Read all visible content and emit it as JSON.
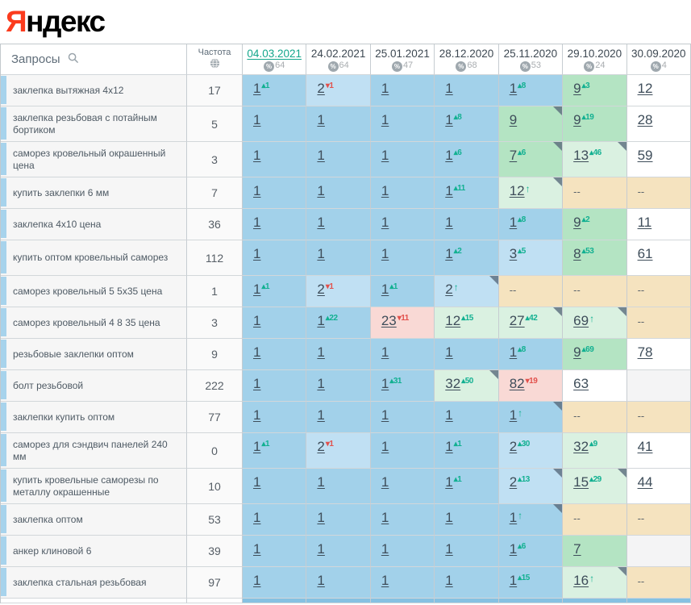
{
  "logo": {
    "first_letter": "Я",
    "rest": "ндекс"
  },
  "colors": {
    "logo_red": "#fb3b1d",
    "active_date": "#12a68b",
    "delta_up": "#12b091",
    "delta_down": "#e2514c",
    "cell_top1": "#a2d1ea",
    "cell_top3": "#c0e0f3",
    "cell_top10": "#b4e4c3",
    "cell_improved": "#daf1e1",
    "cell_declined": "#f9d9d5",
    "cell_not_found": "#f5e3bf"
  },
  "icons": {
    "search": "search-icon",
    "globe": "globe-icon",
    "percent": "percent-icon"
  },
  "table": {
    "queries_header": "Запросы",
    "frequency_header": "Частота",
    "columns": [
      {
        "date": "04.03.2021",
        "coverage": "64",
        "active": true
      },
      {
        "date": "24.02.2021",
        "coverage": "64",
        "active": false
      },
      {
        "date": "25.01.2021",
        "coverage": "47",
        "active": false
      },
      {
        "date": "28.12.2020",
        "coverage": "68",
        "active": false
      },
      {
        "date": "25.11.2020",
        "coverage": "53",
        "active": false
      },
      {
        "date": "29.10.2020",
        "coverage": "24",
        "active": false
      },
      {
        "date": "30.09.2020",
        "coverage": "4",
        "active": false
      }
    ],
    "rows": [
      {
        "keyword": "заклепка вытяжная 4х12",
        "frequency": "17",
        "cells": [
          {
            "p": "1",
            "d": "1",
            "dir": "up",
            "bg": "pos1"
          },
          {
            "p": "2",
            "d": "1",
            "dir": "down",
            "bg": "pos23"
          },
          {
            "p": "1",
            "bg": "pos1"
          },
          {
            "p": "1",
            "bg": "pos1"
          },
          {
            "p": "1",
            "d": "8",
            "dir": "up",
            "bg": "pos1"
          },
          {
            "p": "9",
            "d": "3",
            "dir": "up",
            "bg": "top10"
          },
          {
            "p": "12",
            "bg": "plain"
          }
        ]
      },
      {
        "keyword": "заклепка резьбовая с потайным бортиком",
        "frequency": "5",
        "cells": [
          {
            "p": "1",
            "bg": "pos1"
          },
          {
            "p": "1",
            "bg": "pos1"
          },
          {
            "p": "1",
            "bg": "pos1"
          },
          {
            "p": "1",
            "d": "8",
            "dir": "up",
            "bg": "pos1"
          },
          {
            "p": "9",
            "bg": "top10",
            "corner": true
          },
          {
            "p": "9",
            "d": "19",
            "dir": "up",
            "bg": "top10"
          },
          {
            "p": "28",
            "bg": "plain"
          }
        ]
      },
      {
        "keyword": "саморез кровельный окрашенный цена",
        "frequency": "3",
        "cells": [
          {
            "p": "1",
            "bg": "pos1"
          },
          {
            "p": "1",
            "bg": "pos1"
          },
          {
            "p": "1",
            "bg": "pos1"
          },
          {
            "p": "1",
            "d": "6",
            "dir": "up",
            "bg": "pos1"
          },
          {
            "p": "7",
            "d": "6",
            "dir": "up",
            "bg": "top10",
            "corner": true
          },
          {
            "p": "13",
            "d": "46",
            "dir": "up",
            "bg": "improved",
            "corner": true
          },
          {
            "p": "59",
            "bg": "plain"
          }
        ]
      },
      {
        "keyword": "купить заклепки 6 мм",
        "frequency": "7",
        "cells": [
          {
            "p": "1",
            "bg": "pos1"
          },
          {
            "p": "1",
            "bg": "pos1"
          },
          {
            "p": "1",
            "bg": "pos1"
          },
          {
            "p": "1",
            "d": "11",
            "dir": "up",
            "bg": "pos1"
          },
          {
            "p": "12",
            "dir": "new",
            "bg": "improved",
            "corner": true
          },
          {
            "p": "--",
            "bg": "absent"
          },
          {
            "p": "--",
            "bg": "absent"
          }
        ]
      },
      {
        "keyword": "заклепка 4х10 цена",
        "frequency": "36",
        "cells": [
          {
            "p": "1",
            "bg": "pos1"
          },
          {
            "p": "1",
            "bg": "pos1"
          },
          {
            "p": "1",
            "bg": "pos1"
          },
          {
            "p": "1",
            "bg": "pos1"
          },
          {
            "p": "1",
            "d": "8",
            "dir": "up",
            "bg": "pos1"
          },
          {
            "p": "9",
            "d": "2",
            "dir": "up",
            "bg": "top10"
          },
          {
            "p": "11",
            "bg": "plain"
          }
        ]
      },
      {
        "keyword": "купить оптом кровельный саморез",
        "frequency": "112",
        "cells": [
          {
            "p": "1",
            "bg": "pos1"
          },
          {
            "p": "1",
            "bg": "pos1"
          },
          {
            "p": "1",
            "bg": "pos1"
          },
          {
            "p": "1",
            "d": "2",
            "dir": "up",
            "bg": "pos1"
          },
          {
            "p": "3",
            "d": "5",
            "dir": "up",
            "bg": "pos23"
          },
          {
            "p": "8",
            "d": "53",
            "dir": "up",
            "bg": "top10"
          },
          {
            "p": "61",
            "bg": "plain"
          }
        ]
      },
      {
        "keyword": "саморез кровельный 5 5х35 цена",
        "frequency": "1",
        "cells": [
          {
            "p": "1",
            "d": "1",
            "dir": "up",
            "bg": "pos1"
          },
          {
            "p": "2",
            "d": "1",
            "dir": "down",
            "bg": "pos23"
          },
          {
            "p": "1",
            "d": "1",
            "dir": "up",
            "bg": "pos1"
          },
          {
            "p": "2",
            "dir": "new",
            "bg": "pos23",
            "corner": true
          },
          {
            "p": "--",
            "bg": "absent"
          },
          {
            "p": "--",
            "bg": "absent"
          },
          {
            "p": "--",
            "bg": "absent"
          }
        ]
      },
      {
        "keyword": "саморез кровельный 4 8 35 цена",
        "frequency": "3",
        "cells": [
          {
            "p": "1",
            "bg": "pos1"
          },
          {
            "p": "1",
            "d": "22",
            "dir": "up",
            "bg": "pos1"
          },
          {
            "p": "23",
            "d": "11",
            "dir": "down",
            "bg": "declined"
          },
          {
            "p": "12",
            "d": "15",
            "dir": "up",
            "bg": "improved"
          },
          {
            "p": "27",
            "d": "42",
            "dir": "up",
            "bg": "improved",
            "corner": true
          },
          {
            "p": "69",
            "dir": "new",
            "bg": "improved",
            "corner": true
          },
          {
            "p": "--",
            "bg": "absent"
          }
        ]
      },
      {
        "keyword": "резьбовые заклепки оптом",
        "frequency": "9",
        "cells": [
          {
            "p": "1",
            "bg": "pos1"
          },
          {
            "p": "1",
            "bg": "pos1"
          },
          {
            "p": "1",
            "bg": "pos1"
          },
          {
            "p": "1",
            "bg": "pos1"
          },
          {
            "p": "1",
            "d": "8",
            "dir": "up",
            "bg": "pos1"
          },
          {
            "p": "9",
            "d": "69",
            "dir": "up",
            "bg": "top10"
          },
          {
            "p": "78",
            "bg": "plain"
          }
        ]
      },
      {
        "keyword": "болт резьбовой",
        "frequency": "222",
        "cells": [
          {
            "p": "1",
            "bg": "pos1"
          },
          {
            "p": "1",
            "bg": "pos1"
          },
          {
            "p": "1",
            "d": "31",
            "dir": "up",
            "bg": "pos1"
          },
          {
            "p": "32",
            "d": "50",
            "dir": "up",
            "bg": "improved",
            "corner": true
          },
          {
            "p": "82",
            "d": "19",
            "dir": "down",
            "bg": "declined"
          },
          {
            "p": "63",
            "bg": "plain"
          },
          {
            "p": "",
            "bg": "empty"
          }
        ]
      },
      {
        "keyword": "заклепки купить оптом",
        "frequency": "77",
        "cells": [
          {
            "p": "1",
            "bg": "pos1"
          },
          {
            "p": "1",
            "bg": "pos1"
          },
          {
            "p": "1",
            "bg": "pos1"
          },
          {
            "p": "1",
            "bg": "pos1"
          },
          {
            "p": "1",
            "dir": "new",
            "bg": "pos1",
            "corner": true
          },
          {
            "p": "--",
            "bg": "absent"
          },
          {
            "p": "--",
            "bg": "absent"
          }
        ]
      },
      {
        "keyword": "саморез для сэндвич панелей 240 мм",
        "frequency": "0",
        "cells": [
          {
            "p": "1",
            "d": "1",
            "dir": "up",
            "bg": "pos1"
          },
          {
            "p": "2",
            "d": "1",
            "dir": "down",
            "bg": "pos23"
          },
          {
            "p": "1",
            "bg": "pos1"
          },
          {
            "p": "1",
            "d": "1",
            "dir": "up",
            "bg": "pos1"
          },
          {
            "p": "2",
            "d": "30",
            "dir": "up",
            "bg": "pos23"
          },
          {
            "p": "32",
            "d": "9",
            "dir": "up",
            "bg": "improved"
          },
          {
            "p": "41",
            "bg": "plain"
          }
        ]
      },
      {
        "keyword": "купить кровельные саморезы по металлу окрашенные",
        "frequency": "10",
        "cells": [
          {
            "p": "1",
            "bg": "pos1"
          },
          {
            "p": "1",
            "bg": "pos1"
          },
          {
            "p": "1",
            "bg": "pos1"
          },
          {
            "p": "1",
            "d": "1",
            "dir": "up",
            "bg": "pos1"
          },
          {
            "p": "2",
            "d": "13",
            "dir": "up",
            "bg": "pos23",
            "corner": true
          },
          {
            "p": "15",
            "d": "29",
            "dir": "up",
            "bg": "improved",
            "corner": true
          },
          {
            "p": "44",
            "bg": "plain"
          }
        ]
      },
      {
        "keyword": "заклепка оптом",
        "frequency": "53",
        "cells": [
          {
            "p": "1",
            "bg": "pos1"
          },
          {
            "p": "1",
            "bg": "pos1"
          },
          {
            "p": "1",
            "bg": "pos1"
          },
          {
            "p": "1",
            "bg": "pos1"
          },
          {
            "p": "1",
            "dir": "new",
            "bg": "pos1",
            "corner": true
          },
          {
            "p": "--",
            "bg": "absent"
          },
          {
            "p": "--",
            "bg": "absent"
          }
        ]
      },
      {
        "keyword": "анкер клиновой 6",
        "frequency": "39",
        "cells": [
          {
            "p": "1",
            "bg": "pos1"
          },
          {
            "p": "1",
            "bg": "pos1"
          },
          {
            "p": "1",
            "bg": "pos1"
          },
          {
            "p": "1",
            "bg": "pos1"
          },
          {
            "p": "1",
            "d": "6",
            "dir": "up",
            "bg": "pos1"
          },
          {
            "p": "7",
            "bg": "top10"
          },
          {
            "p": "",
            "bg": "empty"
          }
        ]
      },
      {
        "keyword": "заклепка стальная резьбовая",
        "frequency": "97",
        "cells": [
          {
            "p": "1",
            "bg": "pos1"
          },
          {
            "p": "1",
            "bg": "pos1"
          },
          {
            "p": "1",
            "bg": "pos1"
          },
          {
            "p": "1",
            "bg": "pos1"
          },
          {
            "p": "1",
            "d": "15",
            "dir": "up",
            "bg": "pos1"
          },
          {
            "p": "16",
            "dir": "new",
            "bg": "improved",
            "corner": true
          },
          {
            "p": "--",
            "bg": "absent"
          }
        ]
      }
    ]
  }
}
